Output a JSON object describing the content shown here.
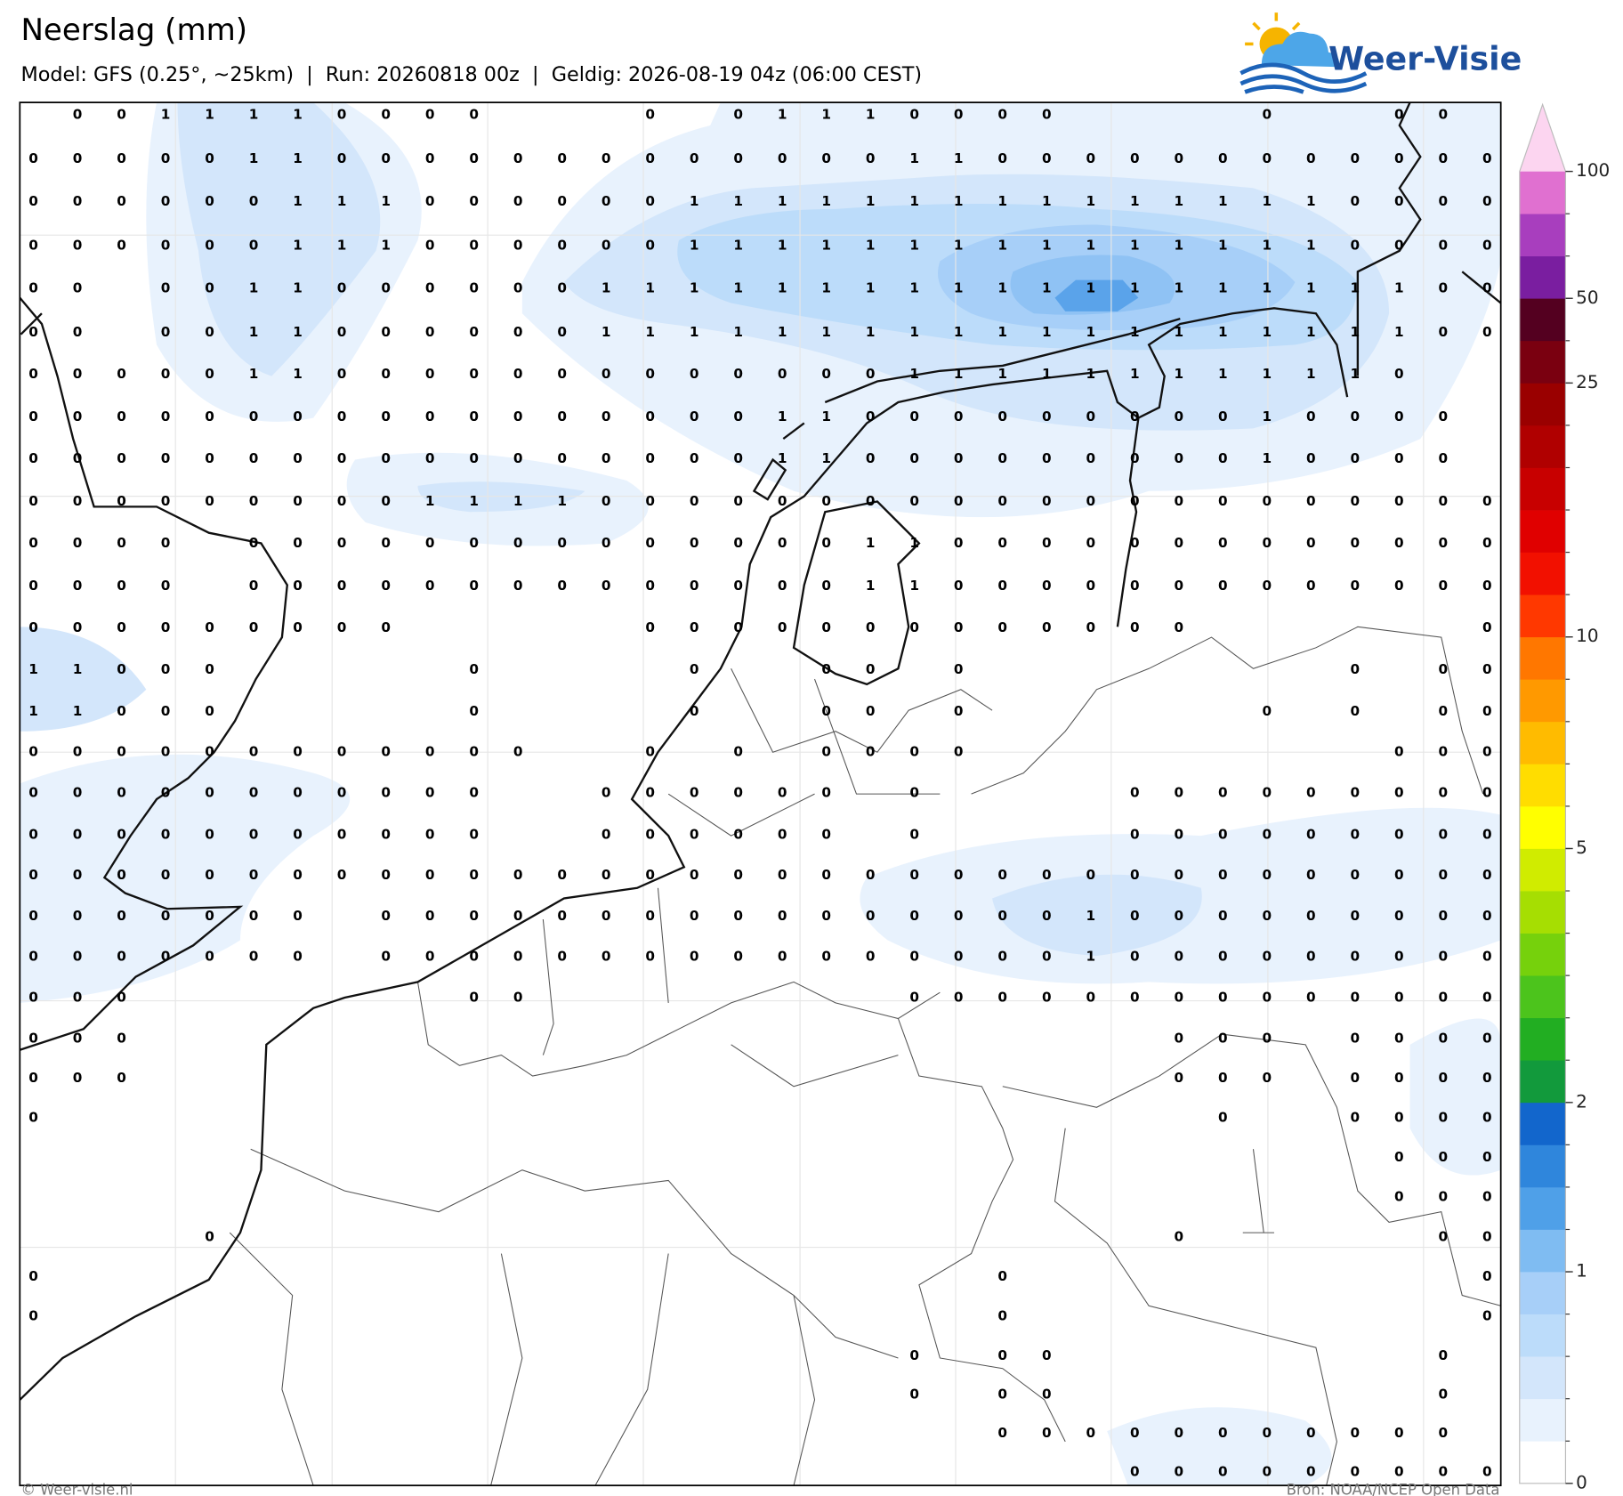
{
  "header": {
    "title": "Neerslag (mm)",
    "subtitle": "Model: GFS (0.25°, ~25km)  |  Run: 20260818 00z  |  Geldig: 2026-08-19 04z (06:00 CEST)"
  },
  "logo": {
    "text": "Weer-Visie"
  },
  "grid": {
    "rows": [
      [
        null,
        0,
        0,
        1,
        1,
        1,
        1,
        0,
        0,
        0,
        0,
        null,
        null,
        null,
        0,
        null,
        0,
        1,
        1,
        1,
        0,
        0,
        0,
        0,
        null,
        null,
        null,
        null,
        0,
        null,
        null,
        0,
        0,
        null
      ],
      [
        0,
        0,
        0,
        0,
        0,
        1,
        1,
        0,
        0,
        0,
        0,
        0,
        0,
        0,
        0,
        0,
        0,
        0,
        0,
        0,
        1,
        1,
        0,
        0,
        0,
        0,
        0,
        0,
        0,
        0,
        0,
        0,
        0,
        0
      ],
      [
        0,
        0,
        0,
        0,
        0,
        0,
        1,
        1,
        1,
        0,
        0,
        0,
        0,
        0,
        0,
        1,
        1,
        1,
        1,
        1,
        1,
        1,
        1,
        1,
        1,
        1,
        1,
        1,
        1,
        1,
        0,
        0,
        0,
        0
      ],
      [
        0,
        0,
        0,
        0,
        0,
        0,
        1,
        1,
        1,
        0,
        0,
        0,
        0,
        0,
        0,
        1,
        1,
        1,
        1,
        1,
        1,
        1,
        1,
        1,
        1,
        1,
        1,
        1,
        1,
        1,
        0,
        0,
        0,
        0
      ],
      [
        0,
        0,
        null,
        0,
        0,
        1,
        1,
        0,
        0,
        0,
        0,
        0,
        0,
        1,
        1,
        1,
        1,
        1,
        1,
        1,
        1,
        1,
        1,
        1,
        1,
        1,
        1,
        1,
        1,
        1,
        1,
        1,
        0,
        0
      ],
      [
        0,
        0,
        null,
        0,
        0,
        1,
        1,
        0,
        0,
        0,
        0,
        0,
        0,
        1,
        1,
        1,
        1,
        1,
        1,
        1,
        1,
        1,
        1,
        1,
        1,
        1,
        1,
        1,
        1,
        1,
        1,
        1,
        0,
        0
      ],
      [
        0,
        0,
        0,
        0,
        0,
        1,
        1,
        0,
        0,
        0,
        0,
        0,
        0,
        0,
        0,
        0,
        0,
        0,
        0,
        0,
        1,
        1,
        1,
        1,
        1,
        1,
        1,
        1,
        1,
        1,
        1,
        0,
        null,
        null
      ],
      [
        0,
        0,
        0,
        0,
        0,
        0,
        0,
        0,
        0,
        0,
        0,
        0,
        0,
        0,
        0,
        0,
        0,
        1,
        1,
        0,
        0,
        0,
        0,
        0,
        0,
        0,
        0,
        0,
        1,
        0,
        0,
        0,
        0,
        null
      ],
      [
        0,
        0,
        0,
        0,
        0,
        0,
        0,
        0,
        0,
        0,
        0,
        0,
        0,
        0,
        0,
        0,
        0,
        1,
        1,
        0,
        0,
        0,
        0,
        0,
        0,
        0,
        0,
        0,
        1,
        0,
        0,
        0,
        0,
        null
      ],
      [
        0,
        0,
        0,
        0,
        0,
        0,
        0,
        0,
        0,
        1,
        1,
        1,
        1,
        0,
        0,
        0,
        0,
        0,
        0,
        0,
        0,
        0,
        0,
        0,
        0,
        0,
        0,
        0,
        0,
        0,
        0,
        0,
        0,
        0
      ],
      [
        0,
        0,
        0,
        0,
        null,
        0,
        0,
        0,
        0,
        0,
        0,
        0,
        0,
        0,
        0,
        0,
        0,
        0,
        0,
        1,
        1,
        0,
        0,
        0,
        0,
        0,
        0,
        0,
        0,
        0,
        0,
        0,
        0,
        0
      ],
      [
        0,
        0,
        0,
        0,
        null,
        0,
        0,
        0,
        0,
        0,
        0,
        0,
        0,
        0,
        0,
        0,
        0,
        0,
        0,
        1,
        1,
        0,
        0,
        0,
        0,
        0,
        0,
        0,
        0,
        0,
        0,
        0,
        0,
        0
      ],
      [
        0,
        0,
        0,
        0,
        0,
        0,
        0,
        0,
        0,
        null,
        null,
        null,
        null,
        null,
        0,
        0,
        0,
        0,
        0,
        0,
        0,
        0,
        0,
        0,
        0,
        0,
        0,
        null,
        null,
        null,
        null,
        null,
        null,
        0
      ],
      [
        1,
        1,
        0,
        0,
        0,
        null,
        null,
        null,
        null,
        null,
        0,
        null,
        null,
        null,
        null,
        0,
        null,
        null,
        0,
        0,
        null,
        0,
        null,
        null,
        null,
        null,
        null,
        null,
        null,
        null,
        0,
        null,
        0,
        0
      ],
      [
        1,
        1,
        0,
        0,
        0,
        null,
        null,
        null,
        null,
        null,
        0,
        null,
        null,
        null,
        null,
        0,
        null,
        null,
        0,
        0,
        null,
        0,
        null,
        null,
        null,
        null,
        null,
        null,
        0,
        null,
        0,
        null,
        0,
        0
      ],
      [
        0,
        0,
        0,
        0,
        0,
        0,
        0,
        0,
        0,
        0,
        0,
        0,
        null,
        null,
        0,
        null,
        0,
        null,
        0,
        0,
        0,
        0,
        null,
        null,
        null,
        null,
        null,
        null,
        null,
        null,
        null,
        0,
        0,
        0
      ],
      [
        0,
        0,
        0,
        0,
        0,
        0,
        0,
        0,
        0,
        0,
        0,
        null,
        null,
        0,
        0,
        0,
        0,
        0,
        0,
        null,
        0,
        null,
        null,
        null,
        null,
        0,
        0,
        0,
        0,
        0,
        0,
        0,
        0,
        0
      ],
      [
        0,
        0,
        0,
        0,
        0,
        0,
        0,
        0,
        0,
        0,
        0,
        null,
        null,
        0,
        0,
        0,
        0,
        0,
        0,
        null,
        0,
        null,
        null,
        null,
        null,
        0,
        0,
        0,
        0,
        0,
        0,
        0,
        0,
        0
      ],
      [
        0,
        0,
        0,
        0,
        0,
        0,
        0,
        0,
        0,
        0,
        0,
        0,
        0,
        0,
        0,
        0,
        0,
        0,
        0,
        0,
        0,
        0,
        0,
        0,
        0,
        0,
        0,
        0,
        0,
        0,
        0,
        0,
        0,
        0
      ],
      [
        0,
        0,
        0,
        0,
        0,
        0,
        0,
        null,
        0,
        0,
        0,
        0,
        0,
        0,
        0,
        0,
        0,
        0,
        0,
        0,
        0,
        0,
        0,
        0,
        1,
        0,
        0,
        0,
        0,
        0,
        0,
        0,
        0,
        0
      ],
      [
        0,
        0,
        0,
        0,
        0,
        0,
        0,
        null,
        0,
        0,
        0,
        0,
        0,
        0,
        0,
        0,
        0,
        0,
        0,
        0,
        0,
        0,
        0,
        0,
        1,
        0,
        0,
        0,
        0,
        0,
        0,
        0,
        0,
        0
      ],
      [
        0,
        0,
        0,
        null,
        null,
        null,
        null,
        null,
        null,
        null,
        0,
        0,
        null,
        null,
        null,
        null,
        null,
        null,
        null,
        null,
        0,
        0,
        0,
        0,
        0,
        0,
        0,
        0,
        0,
        0,
        0,
        0,
        0,
        0
      ],
      [
        0,
        0,
        0,
        null,
        null,
        null,
        null,
        null,
        null,
        null,
        null,
        null,
        null,
        null,
        null,
        null,
        null,
        null,
        null,
        null,
        null,
        null,
        null,
        null,
        null,
        null,
        0,
        0,
        0,
        null,
        0,
        0,
        0,
        0
      ],
      [
        0,
        0,
        0,
        null,
        null,
        null,
        null,
        null,
        null,
        null,
        null,
        null,
        null,
        null,
        null,
        null,
        null,
        null,
        null,
        null,
        null,
        null,
        null,
        null,
        null,
        null,
        0,
        0,
        0,
        null,
        0,
        0,
        0,
        0
      ],
      [
        0,
        null,
        null,
        null,
        null,
        null,
        null,
        null,
        null,
        null,
        null,
        null,
        null,
        null,
        null,
        null,
        null,
        null,
        null,
        null,
        null,
        null,
        null,
        null,
        null,
        null,
        null,
        0,
        null,
        null,
        0,
        0,
        0,
        0
      ],
      [
        null,
        null,
        null,
        null,
        null,
        null,
        null,
        null,
        null,
        null,
        null,
        null,
        null,
        null,
        null,
        null,
        null,
        null,
        null,
        null,
        null,
        null,
        null,
        null,
        null,
        null,
        null,
        null,
        null,
        null,
        null,
        0,
        0,
        0
      ],
      [
        null,
        null,
        null,
        null,
        null,
        null,
        null,
        null,
        null,
        null,
        null,
        null,
        null,
        null,
        null,
        null,
        null,
        null,
        null,
        null,
        null,
        null,
        null,
        null,
        null,
        null,
        null,
        null,
        null,
        null,
        null,
        0,
        0,
        0
      ],
      [
        null,
        null,
        null,
        null,
        0,
        null,
        null,
        null,
        null,
        null,
        null,
        null,
        null,
        null,
        null,
        null,
        null,
        null,
        null,
        null,
        null,
        null,
        null,
        null,
        null,
        null,
        0,
        null,
        null,
        null,
        null,
        null,
        0,
        0
      ],
      [
        0,
        null,
        null,
        null,
        null,
        null,
        null,
        null,
        null,
        null,
        null,
        null,
        null,
        null,
        null,
        null,
        null,
        null,
        null,
        null,
        null,
        null,
        0,
        null,
        null,
        null,
        null,
        null,
        null,
        null,
        null,
        null,
        null,
        0
      ],
      [
        0,
        null,
        null,
        null,
        null,
        null,
        null,
        null,
        null,
        null,
        null,
        null,
        null,
        null,
        null,
        null,
        null,
        null,
        null,
        null,
        null,
        null,
        0,
        null,
        null,
        null,
        null,
        null,
        null,
        null,
        null,
        null,
        null,
        0
      ],
      [
        null,
        null,
        null,
        null,
        null,
        null,
        null,
        null,
        null,
        null,
        null,
        null,
        null,
        null,
        null,
        null,
        null,
        null,
        null,
        null,
        0,
        null,
        0,
        0,
        null,
        null,
        null,
        null,
        null,
        null,
        null,
        null,
        0,
        null
      ],
      [
        null,
        null,
        null,
        null,
        null,
        null,
        null,
        null,
        null,
        null,
        null,
        null,
        null,
        null,
        null,
        null,
        null,
        null,
        null,
        null,
        0,
        null,
        0,
        0,
        null,
        null,
        null,
        null,
        null,
        null,
        null,
        null,
        0,
        null
      ],
      [
        null,
        null,
        null,
        null,
        null,
        null,
        null,
        null,
        null,
        null,
        null,
        null,
        null,
        null,
        null,
        null,
        null,
        null,
        null,
        null,
        null,
        null,
        0,
        0,
        0,
        0,
        0,
        0,
        0,
        0,
        0,
        0,
        0,
        null
      ],
      [
        null,
        null,
        null,
        null,
        null,
        null,
        null,
        null,
        null,
        null,
        null,
        null,
        null,
        null,
        null,
        null,
        null,
        null,
        null,
        null,
        null,
        null,
        null,
        null,
        null,
        0,
        0,
        0,
        0,
        0,
        0,
        0,
        0,
        0
      ]
    ]
  },
  "colorbar": {
    "colors": [
      "#ffffff",
      "#e8f2fd",
      "#d3e6fb",
      "#bcdcfa",
      "#a7cff8",
      "#7fbcf2",
      "#4fa0e8",
      "#2f86dc",
      "#1266cc",
      "#129a3c",
      "#22ae22",
      "#4cc41c",
      "#76d10c",
      "#a6de02",
      "#d0ec00",
      "#ffff00",
      "#ffdd00",
      "#ffbb00",
      "#ff9900",
      "#ff7700",
      "#ff3800",
      "#f21000",
      "#e00000",
      "#c80000",
      "#b00000",
      "#9a0000",
      "#7a0010",
      "#540020",
      "#7a1ea0",
      "#a83ebe",
      "#e070d0"
    ],
    "extend_color": "#fcd5f0",
    "ticks": [
      0,
      1,
      2,
      5,
      10,
      25,
      50,
      100
    ]
  },
  "footer": {
    "left": "© Weer-visie.nl",
    "right": "Bron: NOAA/NCEP Open Data"
  }
}
